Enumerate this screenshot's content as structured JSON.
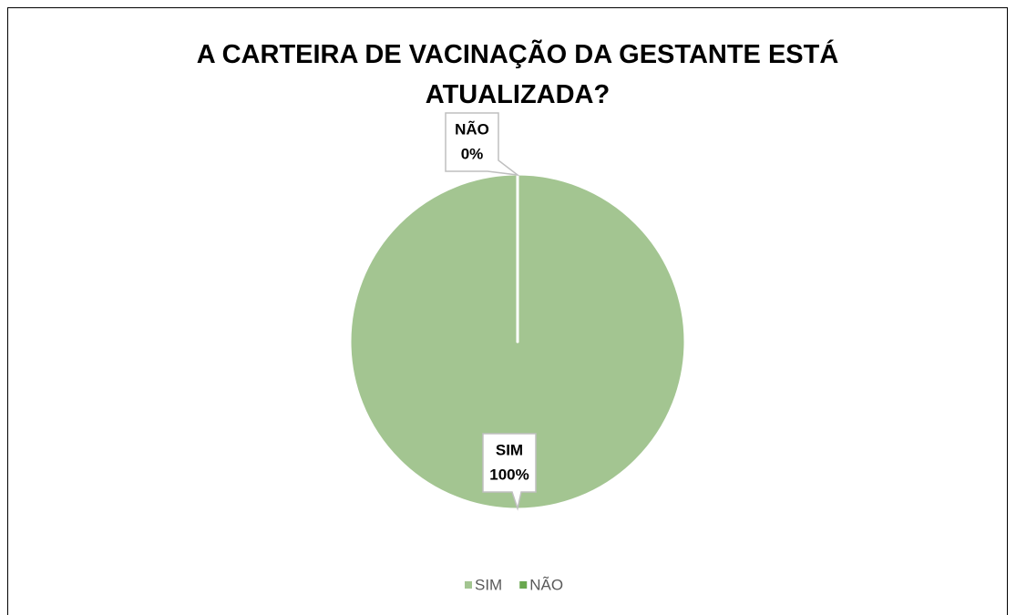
{
  "chart_data": {
    "type": "pie",
    "title": "A CARTEIRA DE VACINAÇÃO DA GESTANTE ESTÁ ATUALIZADA?",
    "categories": [
      "SIM",
      "NÃO"
    ],
    "values": [
      100,
      0
    ],
    "value_labels": [
      "100%",
      "0%"
    ],
    "colors": [
      "#a3c591",
      "#6aa84f"
    ],
    "legend": "bottom"
  }
}
